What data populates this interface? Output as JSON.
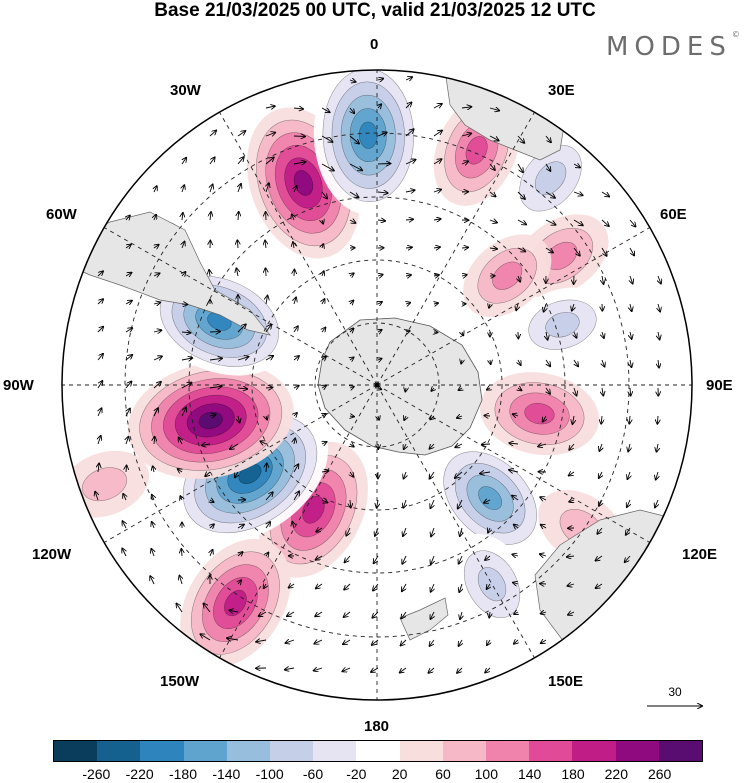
{
  "title": "Base 21/03/2025 00 UTC, valid 21/03/2025 12 UTC",
  "logo": "MODES",
  "logo_mark": "©",
  "meridian_labels": {
    "m0": "0",
    "m30e": "30E",
    "m60e": "60E",
    "m90e": "90E",
    "m120e": "120E",
    "m150e": "150E",
    "m180": "180",
    "m150w": "150W",
    "m120w": "120W",
    "m90w": "90W",
    "m60w": "60W",
    "m30w": "30W"
  },
  "reference_vector": "30",
  "colorbar": {
    "colors": [
      "#0a3d5c",
      "#14618f",
      "#2e85bd",
      "#5fa4cf",
      "#97bedc",
      "#c5cfe7",
      "#e6e3f2",
      "#ffffff",
      "#f9dede",
      "#f6b7c6",
      "#ef83ac",
      "#e04a97",
      "#c01d87",
      "#8e0a7e",
      "#5a0d70"
    ],
    "ticks": [
      "-260",
      "-220",
      "-180",
      "-140",
      "-100",
      "-60",
      "-20",
      "20",
      "60",
      "100",
      "140",
      "180",
      "220",
      "260"
    ]
  },
  "anomalies": [
    {
      "lon": -20,
      "r": 215,
      "val": 220
    },
    {
      "lon": -2,
      "r": 250,
      "val": -230
    },
    {
      "lon": 23,
      "r": 255,
      "val": 120
    },
    {
      "lon": 40,
      "r": 270,
      "val": -110
    },
    {
      "lon": 55,
      "r": 225,
      "val": 90
    },
    {
      "lon": 50,
      "r": 170,
      "val": 80
    },
    {
      "lon": 72,
      "r": 195,
      "val": -90
    },
    {
      "lon": 100,
      "r": 165,
      "val": 130
    },
    {
      "lon": 135,
      "r": 160,
      "val": -170
    },
    {
      "lon": 150,
      "r": 230,
      "val": -100
    },
    {
      "lon": 125,
      "r": 250,
      "val": 70
    },
    {
      "lon": -153,
      "r": 140,
      "val": 190
    },
    {
      "lon": -147,
      "r": 260,
      "val": 180
    },
    {
      "lon": -125,
      "r": 155,
      "val": -260
    },
    {
      "lon": -102,
      "r": 170,
      "val": 250
    },
    {
      "lon": -68,
      "r": 170,
      "val": -200
    },
    {
      "lon": -55,
      "r": 255,
      "val": -60
    },
    {
      "lon": -110,
      "r": 290,
      "val": 60
    }
  ]
}
